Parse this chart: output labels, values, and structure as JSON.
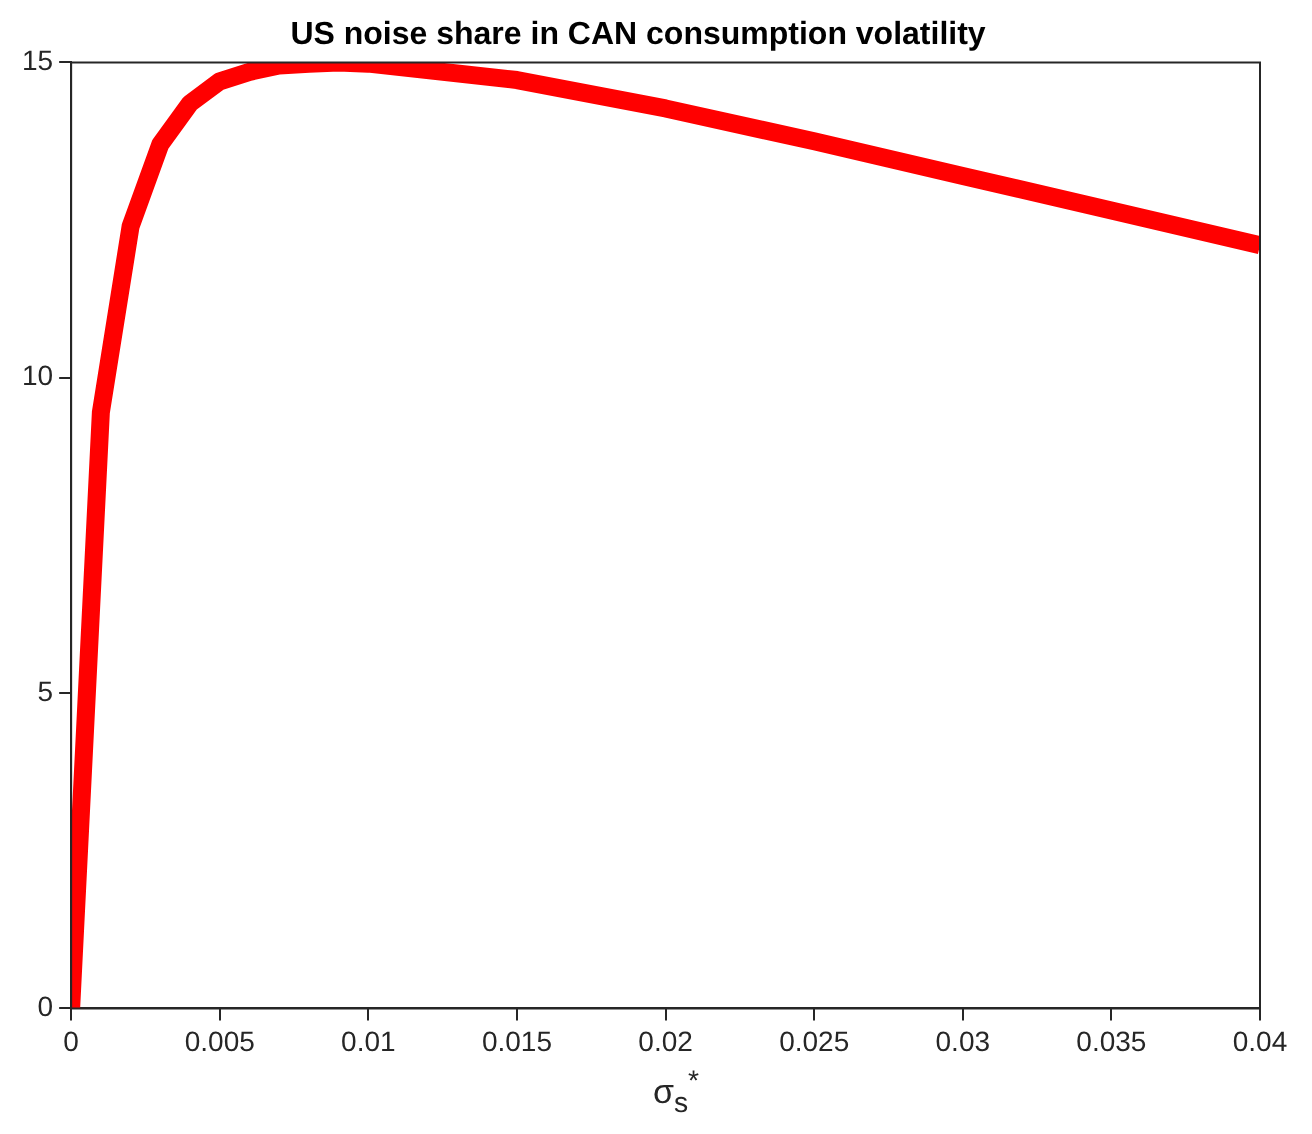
{
  "chart_data": {
    "type": "line",
    "title": "US noise share in CAN consumption volatility",
    "xlabel": "σ$_{s}$$^{*}$",
    "x": [
      0,
      0.001,
      0.002,
      0.003,
      0.004,
      0.005,
      0.006,
      0.007,
      0.008,
      0.009,
      0.01,
      0.015,
      0.02,
      0.025,
      0.03,
      0.035,
      0.04
    ],
    "series": [
      {
        "color": "#ff0000",
        "values": [
          0,
          9.45,
          12.4,
          13.7,
          14.35,
          14.7,
          14.85,
          14.95,
          14.98,
          15,
          14.98,
          14.72,
          14.27,
          13.75,
          13.2,
          12.65,
          12.1
        ]
      }
    ],
    "xlim": [
      0,
      0.04
    ],
    "xticks": [
      0,
      0.005,
      0.01,
      0.015,
      0.02,
      0.025,
      0.03,
      0.035,
      0.04
    ],
    "ylim": [
      0,
      15
    ],
    "yticks": [
      0,
      5,
      10,
      15
    ],
    "grid": false,
    "legend": false,
    "marker": "none",
    "line_style": "solid"
  }
}
